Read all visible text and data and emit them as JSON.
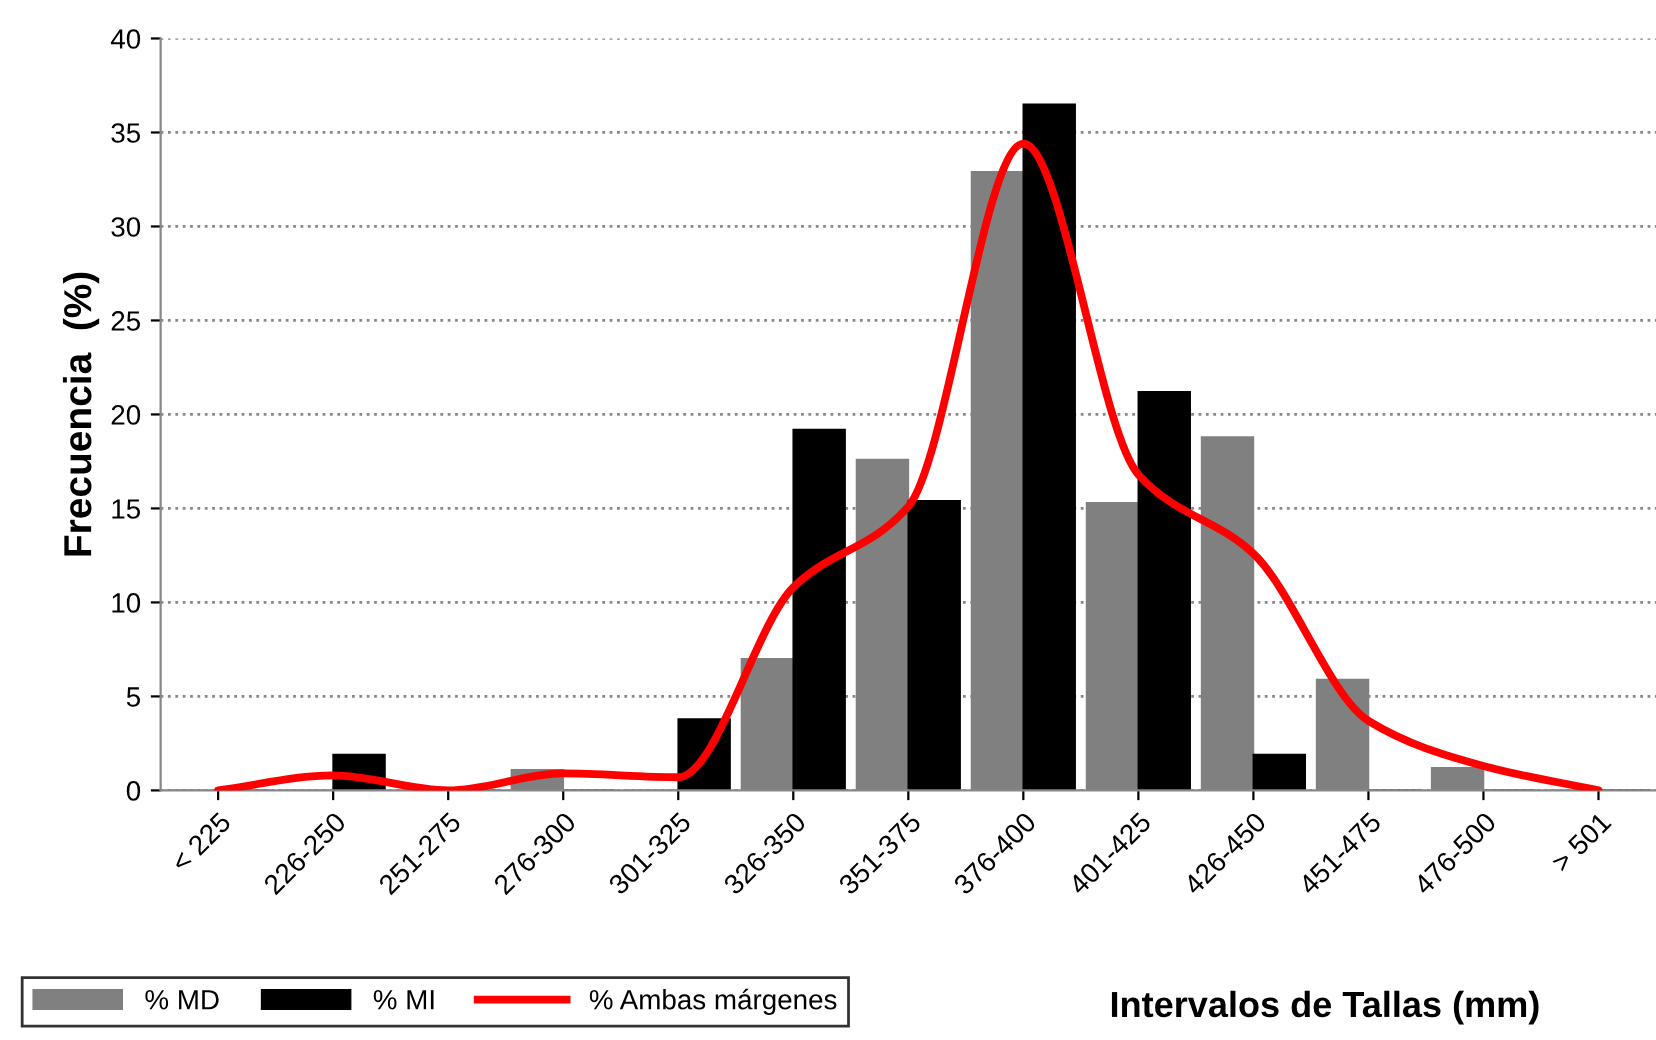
{
  "chart_data": {
    "type": "bar",
    "ylabel": "Frecuencia  (%)",
    "xlabel": "Intervalos de Tallas (mm)",
    "categories": [
      "< 225",
      "226-250",
      "251-275",
      "276-300",
      "301-325",
      "326-350",
      "351-375",
      "376-400",
      "401-425",
      "426-450",
      "451-475",
      "476-500",
      "> 501"
    ],
    "series": [
      {
        "name": "% MD",
        "color": "#808080",
        "values": [
          0,
          0,
          0,
          1.1,
          0,
          7.0,
          17.6,
          32.9,
          15.3,
          18.8,
          5.9,
          1.2,
          0
        ]
      },
      {
        "name": "% MI",
        "color": "#000000",
        "values": [
          0,
          1.9,
          0,
          0,
          3.8,
          19.2,
          15.4,
          36.5,
          21.2,
          1.9,
          0,
          0,
          0
        ]
      },
      {
        "name": "% Ambas márgenes",
        "type": "line",
        "color": "#ff0000",
        "values": [
          0,
          0.8,
          0,
          0.9,
          0.7,
          10.8,
          15.1,
          34.4,
          16.8,
          12.6,
          3.7,
          1.3,
          0
        ]
      }
    ],
    "ylim": [
      0,
      40
    ],
    "yticks": [
      0,
      5,
      10,
      15,
      20,
      25,
      30,
      35,
      40
    ],
    "grid": "y",
    "legend": "bottom left",
    "marker": "none",
    "line_style": "solid"
  }
}
